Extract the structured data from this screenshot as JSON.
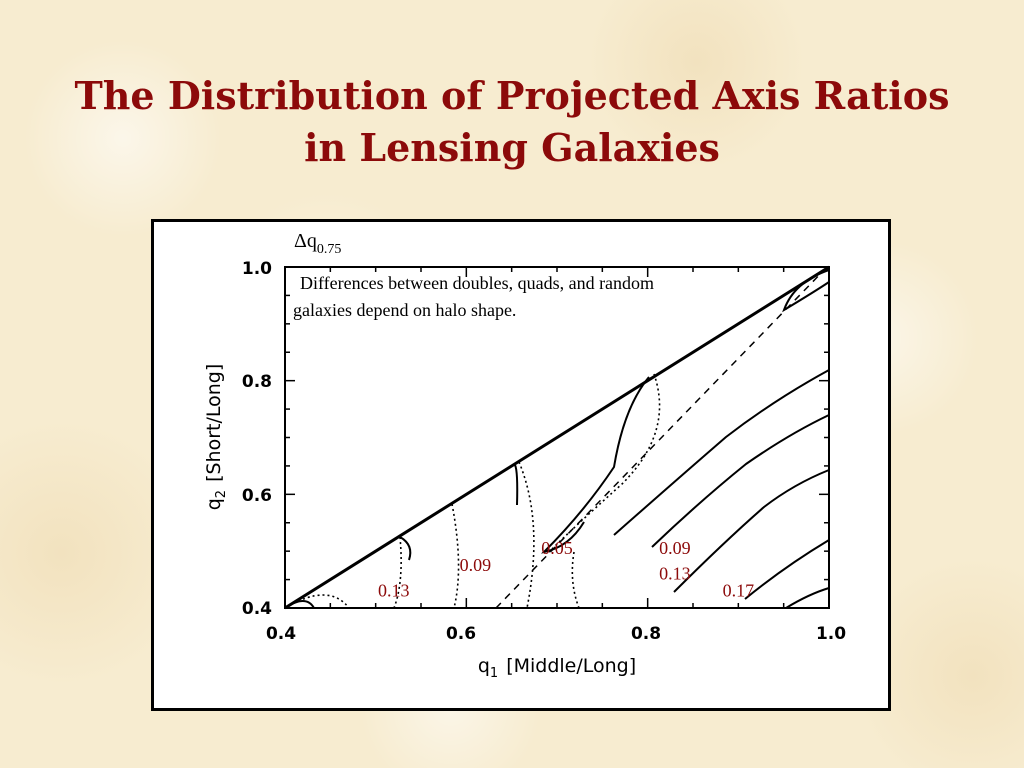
{
  "slide": {
    "title": "The Distribution of Projected Axis Ratios in Lensing Galaxies"
  },
  "chart_data": {
    "type": "line",
    "xlabel_main": "q",
    "xlabel_sub": "1",
    "xlabel_rest": "[Middle/Long]",
    "ylabel_main": "q",
    "ylabel_sub": "2",
    "ylabel_rest": "[Short/Long]",
    "xlim": [
      0.4,
      1.0
    ],
    "ylim": [
      0.4,
      1.0
    ],
    "xticks": [
      "0.4",
      "0.6",
      "0.8",
      "1.0"
    ],
    "yticks": [
      "0.4",
      "0.6",
      "0.8",
      "1.0"
    ],
    "symbol_main": "Δq",
    "symbol_sub": "0.75",
    "note_line1": "Differences between doubles, quads, and random",
    "note_line2": "galaxies depend on halo shape.",
    "contour_labels": [
      {
        "text": "0.05",
        "q1": 0.7,
        "q2": 0.495
      },
      {
        "text": "0.09",
        "q1": 0.83,
        "q2": 0.495
      },
      {
        "text": "0.09",
        "q1": 0.61,
        "q2": 0.465
      },
      {
        "text": "0.13",
        "q1": 0.52,
        "q2": 0.42
      },
      {
        "text": "0.13",
        "q1": 0.83,
        "q2": 0.45
      },
      {
        "text": "0.17",
        "q1": 0.9,
        "q2": 0.42
      }
    ],
    "colors": {
      "title": "#8c0a0a",
      "contour_label": "#8c0a0a",
      "background": "#f7ecd0"
    }
  }
}
